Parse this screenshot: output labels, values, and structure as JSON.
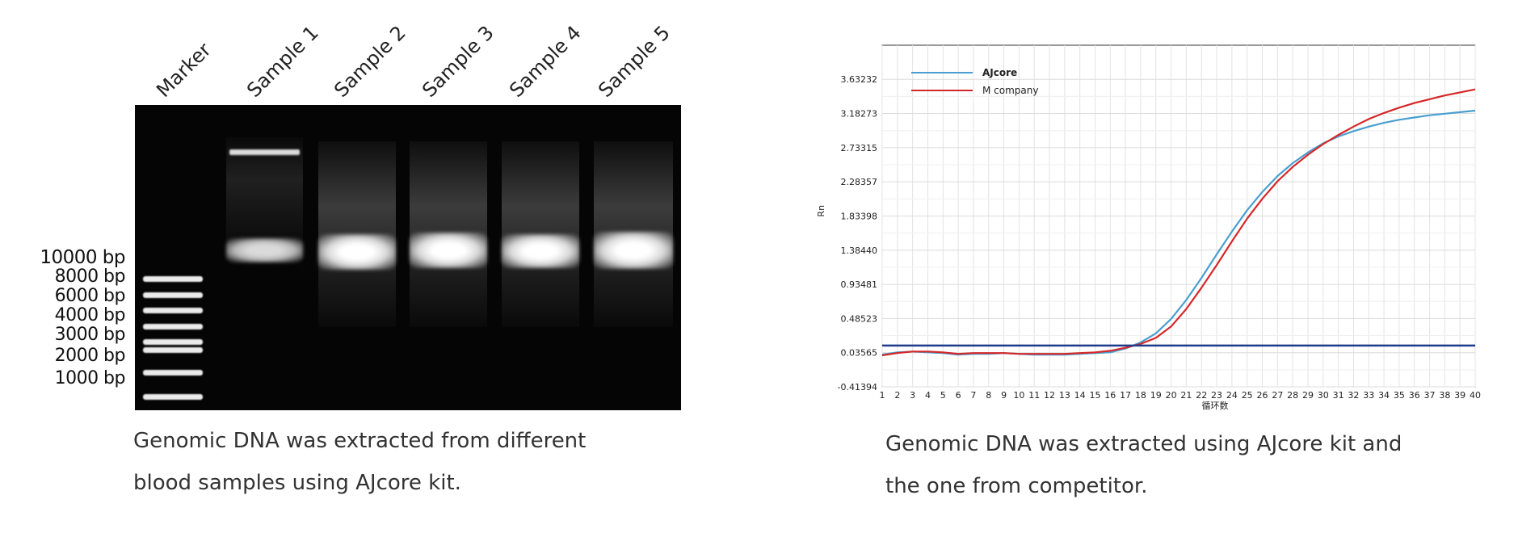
{
  "gel": {
    "lane_headers": [
      "Marker",
      "Sample 1",
      "Sample 2",
      "Sample 3",
      "Sample 4",
      "Sample 5"
    ],
    "ladder_labels": [
      "10000 bp",
      "8000 bp",
      "6000 bp",
      "4000 bp",
      "3000 bp",
      "2000 bp",
      "1000 bp"
    ],
    "caption_line1": "Genomic DNA was extracted from different",
    "caption_line2": "blood samples using AJcore kit."
  },
  "chart_caption": {
    "line1": "Genomic DNA was extracted using AJcore kit and",
    "line2": "the one from competitor."
  },
  "chart_data": {
    "type": "line",
    "ylabel": "Rn",
    "xlabel": "循环数",
    "x": [
      1,
      2,
      3,
      4,
      5,
      6,
      7,
      8,
      9,
      10,
      11,
      12,
      13,
      14,
      15,
      16,
      17,
      18,
      19,
      20,
      21,
      22,
      23,
      24,
      25,
      26,
      27,
      28,
      29,
      30,
      31,
      32,
      33,
      34,
      35,
      36,
      37,
      38,
      39,
      40
    ],
    "xlim": [
      1,
      40
    ],
    "ylim": [
      -0.41394,
      4.08111
    ],
    "yticks": [
      "3.63232",
      "3.18273",
      "2.73315",
      "2.28357",
      "1.83398",
      "1.38440",
      "0.93481",
      "0.48523",
      "0.03565",
      "-0.41394"
    ],
    "ytick_values": [
      3.63232,
      3.18273,
      2.73315,
      2.28357,
      1.83398,
      1.3844,
      0.93481,
      0.48523,
      0.03565,
      -0.41394
    ],
    "threshold": 0.13,
    "grid": true,
    "legend_position": "top-left",
    "series": [
      {
        "name": "AJcore",
        "color": "#4a9fd0",
        "values": [
          0.01,
          0.04,
          0.05,
          0.04,
          0.03,
          0.01,
          0.02,
          0.02,
          0.03,
          0.02,
          0.01,
          0.01,
          0.01,
          0.02,
          0.03,
          0.04,
          0.09,
          0.17,
          0.29,
          0.48,
          0.73,
          1.02,
          1.33,
          1.63,
          1.91,
          2.15,
          2.36,
          2.53,
          2.67,
          2.79,
          2.88,
          2.95,
          3.01,
          3.06,
          3.1,
          3.13,
          3.16,
          3.18,
          3.2,
          3.22
        ]
      },
      {
        "name": "M company",
        "color": "#d62728",
        "values": [
          0.0,
          0.03,
          0.05,
          0.05,
          0.04,
          0.02,
          0.03,
          0.03,
          0.03,
          0.02,
          0.02,
          0.02,
          0.02,
          0.03,
          0.04,
          0.06,
          0.1,
          0.15,
          0.23,
          0.38,
          0.61,
          0.89,
          1.19,
          1.5,
          1.8,
          2.06,
          2.29,
          2.48,
          2.64,
          2.78,
          2.9,
          3.01,
          3.11,
          3.19,
          3.26,
          3.32,
          3.37,
          3.42,
          3.46,
          3.5
        ]
      }
    ],
    "threshold_color": "#1f3b8c"
  }
}
